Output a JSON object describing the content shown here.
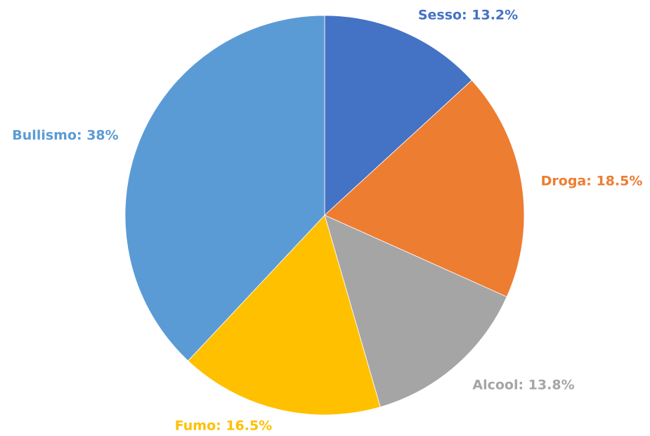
{
  "chart_data": {
    "type": "pie",
    "start_angle_deg": 0,
    "direction": "clockwise",
    "legend": "none",
    "slices": [
      {
        "label": "Sesso",
        "value": 13.2,
        "display": "Sesso: 13.2%",
        "color": "#4472C4"
      },
      {
        "label": "Droga",
        "value": 18.5,
        "display": "Droga: 18.5%",
        "color": "#ED7D31"
      },
      {
        "label": "Alcool",
        "value": 13.8,
        "display": "Alcool: 13.8%",
        "color": "#A5A5A5"
      },
      {
        "label": "Fumo",
        "value": 16.5,
        "display": "Fumo: 16.5%",
        "color": "#FFC000"
      },
      {
        "label": "Bullismo",
        "value": 38,
        "display": "Bullismo: 38%",
        "color": "#5B9BD5"
      }
    ]
  }
}
